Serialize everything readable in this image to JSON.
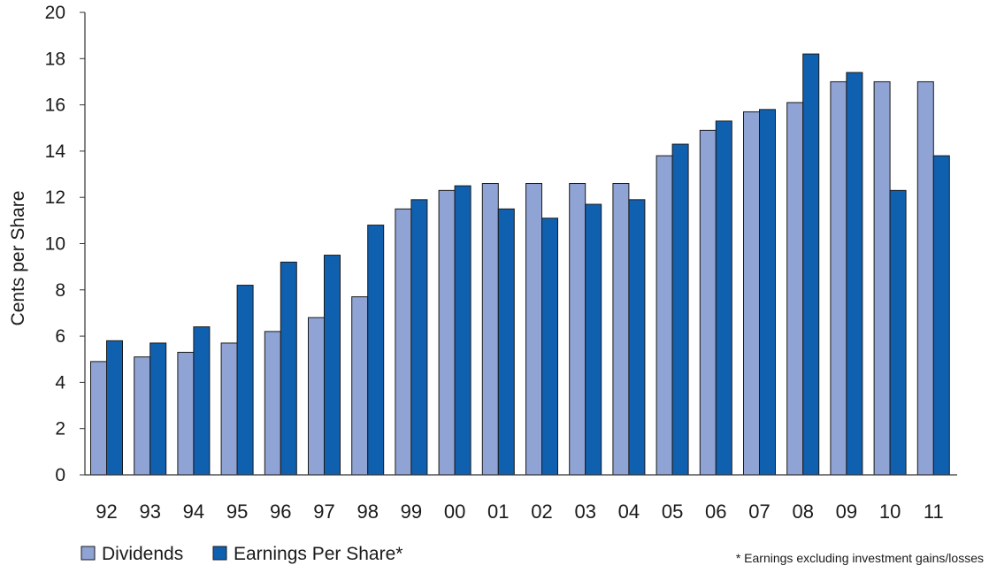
{
  "chart_data": {
    "type": "bar",
    "title": "",
    "xlabel": "",
    "ylabel": "Cents per Share",
    "ylim": [
      0,
      20
    ],
    "yticks": [
      0,
      2,
      4,
      6,
      8,
      10,
      12,
      14,
      16,
      18,
      20
    ],
    "grid": false,
    "legend_position": "bottom-left",
    "categories": [
      "92",
      "93",
      "94",
      "95",
      "96",
      "97",
      "98",
      "99",
      "00",
      "01",
      "02",
      "03",
      "04",
      "05",
      "06",
      "07",
      "08",
      "09",
      "10",
      "11"
    ],
    "series": [
      {
        "name": "Dividends",
        "color": "#8fa3d4",
        "values": [
          4.9,
          5.1,
          5.3,
          5.7,
          6.2,
          6.8,
          7.7,
          11.5,
          12.3,
          12.6,
          12.6,
          12.6,
          12.6,
          13.8,
          14.9,
          15.7,
          16.1,
          17.0,
          17.0,
          17.0
        ]
      },
      {
        "name": "Earnings Per Share*",
        "color": "#1060b0",
        "values": [
          5.8,
          5.7,
          6.4,
          8.2,
          9.2,
          9.5,
          10.8,
          11.9,
          12.5,
          11.5,
          11.1,
          11.7,
          11.9,
          14.3,
          15.3,
          15.8,
          18.2,
          17.4,
          12.3,
          13.8
        ]
      }
    ],
    "footnote": "* Earnings excluding investment gains/losses"
  }
}
